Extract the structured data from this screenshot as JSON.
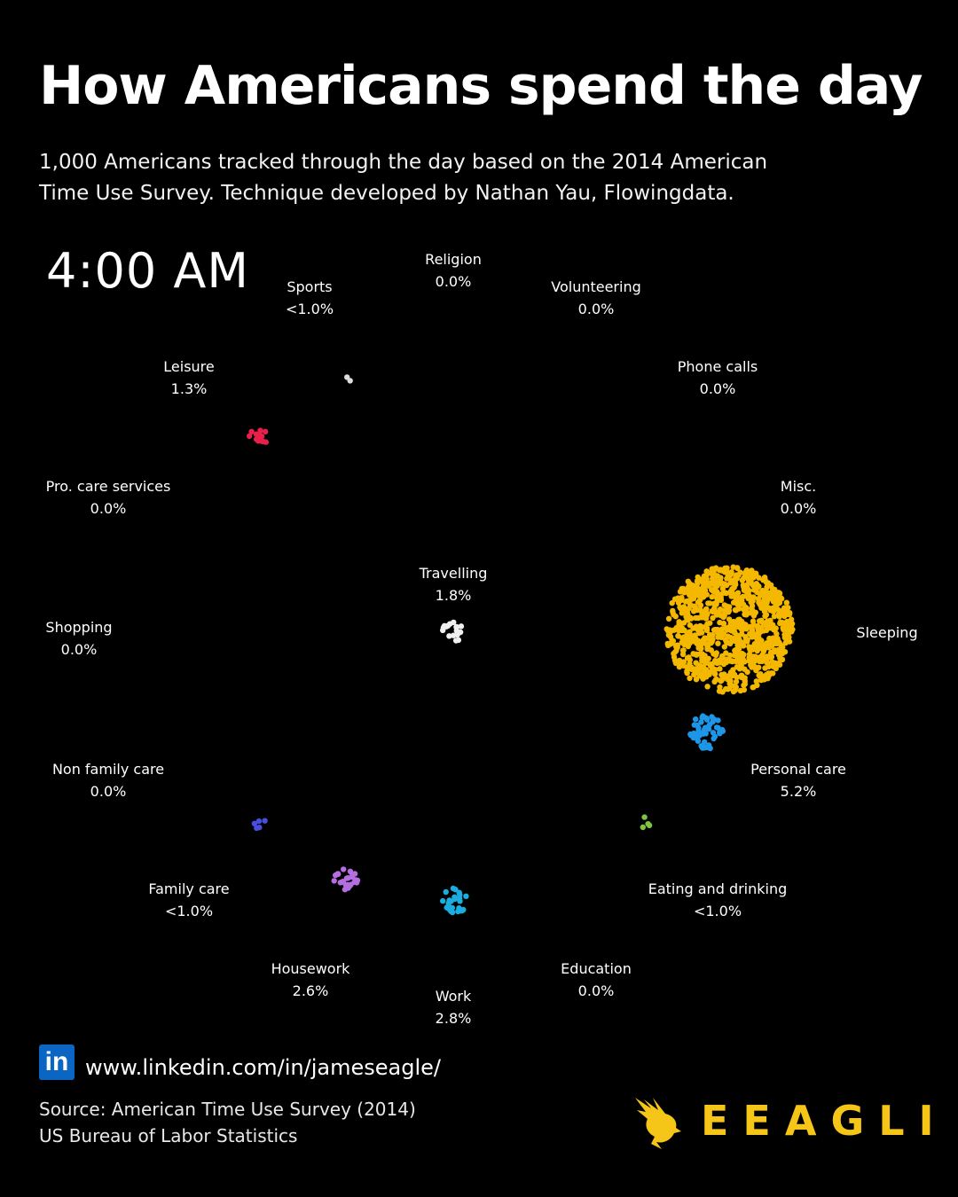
{
  "title": "How Americans spend the day",
  "subtitle_lines": [
    "1,000 Americans tracked through the day based on the 2014 American",
    "Time Use Survey. Technique developed by Nathan Yau, Flowingdata."
  ],
  "clock": "4:00 AM",
  "chart_data": {
    "type": "scatter",
    "title": "How Americans spend the day",
    "time": "4:00 AM",
    "categories": [
      {
        "name": "Religion",
        "label": "0.0%",
        "value": 0.0,
        "color": ""
      },
      {
        "name": "Volunteering",
        "label": "0.0%",
        "value": 0.0,
        "color": ""
      },
      {
        "name": "Phone calls",
        "label": "0.0%",
        "value": 0.0,
        "color": ""
      },
      {
        "name": "Misc.",
        "label": "0.0%",
        "value": 0.0,
        "color": ""
      },
      {
        "name": "Sleeping",
        "label": "",
        "value": 89.0,
        "color": "#f5b800"
      },
      {
        "name": "Personal care",
        "label": "5.2%",
        "value": 5.2,
        "color": "#1e96e8"
      },
      {
        "name": "Eating and drinking",
        "label": "<1.0%",
        "value": 0.4,
        "color": "#7cc444"
      },
      {
        "name": "Education",
        "label": "0.0%",
        "value": 0.0,
        "color": ""
      },
      {
        "name": "Work",
        "label": "2.8%",
        "value": 2.8,
        "color": "#1aaee0"
      },
      {
        "name": "Housework",
        "label": "2.6%",
        "value": 2.6,
        "color": "#b46ee0"
      },
      {
        "name": "Family care",
        "label": "<1.0%",
        "value": 0.5,
        "color": "#4a4ee0"
      },
      {
        "name": "Non family care",
        "label": "0.0%",
        "value": 0.0,
        "color": ""
      },
      {
        "name": "Shopping",
        "label": "0.0%",
        "value": 0.0,
        "color": ""
      },
      {
        "name": "Pro. care services",
        "label": "0.0%",
        "value": 0.0,
        "color": ""
      },
      {
        "name": "Leisure",
        "label": "1.3%",
        "value": 1.3,
        "color": "#e8204a"
      },
      {
        "name": "Sports",
        "label": "<1.0%",
        "value": 0.2,
        "color": "#dddddd"
      },
      {
        "name": "Travelling",
        "label": "1.8%",
        "value": 1.8,
        "color": "#f0f0f0"
      }
    ]
  },
  "footer": {
    "linkedin_badge": "in",
    "link": "www.linkedin.com/in/jameseagle/",
    "source_lines": [
      "Source: American Time Use Survey (2014)",
      "US Bureau of Labor Statistics"
    ],
    "brand": "EEAGLI",
    "brand_color": "#f5c518"
  }
}
